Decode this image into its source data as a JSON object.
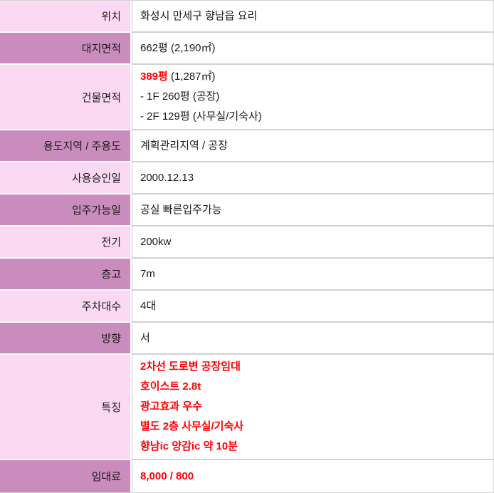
{
  "table": {
    "colors": {
      "label_bg_light": "#fcd9f2",
      "label_bg_dark": "#ca8cbd",
      "value_bg": "#ffffff",
      "row_border": "#d2d2d2",
      "text": "#1a1a1a",
      "highlight_red": "#ff0000"
    },
    "rows": [
      {
        "name": "location",
        "label": "위치",
        "shade": "light",
        "lines": [
          [
            {
              "t": "화성시 만세구 향남읍 요리"
            }
          ]
        ]
      },
      {
        "name": "land-area",
        "label": "대지면적",
        "shade": "dark",
        "lines": [
          [
            {
              "t": "662평 (2,190㎡)"
            }
          ]
        ]
      },
      {
        "name": "building-area",
        "label": "건물면적",
        "shade": "light",
        "lines": [
          [
            {
              "t": "389평",
              "red": true
            },
            {
              "t": " (1,287㎡)"
            }
          ],
          [
            {
              "t": "- 1F 260평 (공장)"
            }
          ],
          [
            {
              "t": "- 2F 129평 (사무실/기숙사)"
            }
          ]
        ]
      },
      {
        "name": "zoning-main-use",
        "label": "용도지역 / 주용도",
        "shade": "dark",
        "lines": [
          [
            {
              "t": "계획관리지역 / 공장"
            }
          ]
        ]
      },
      {
        "name": "approval-date",
        "label": "사용승인일",
        "shade": "light",
        "lines": [
          [
            {
              "t": "2000.12.13"
            }
          ]
        ]
      },
      {
        "name": "move-in-date",
        "label": "입주가능일",
        "shade": "dark",
        "lines": [
          [
            {
              "t": "공실 빠른입주가능"
            }
          ]
        ]
      },
      {
        "name": "electricity",
        "label": "전기",
        "shade": "light",
        "lines": [
          [
            {
              "t": "200kw"
            }
          ]
        ]
      },
      {
        "name": "ceiling-height",
        "label": "층고",
        "shade": "dark",
        "lines": [
          [
            {
              "t": "7m"
            }
          ]
        ]
      },
      {
        "name": "parking-count",
        "label": "주차대수",
        "shade": "light",
        "lines": [
          [
            {
              "t": "4대"
            }
          ]
        ]
      },
      {
        "name": "direction",
        "label": "방향",
        "shade": "dark",
        "lines": [
          [
            {
              "t": "서"
            }
          ]
        ]
      },
      {
        "name": "features",
        "label": "특징",
        "shade": "light",
        "lines": [
          [
            {
              "t": "2차선 도로변 공장임대",
              "red": true
            }
          ],
          [
            {
              "t": "호이스트 2.8t",
              "red": true
            }
          ],
          [
            {
              "t": "광고효과 우수",
              "red": true
            }
          ],
          [
            {
              "t": "별도 2층 사무실/기숙사",
              "red": true
            }
          ],
          [
            {
              "t": "향남ic 양감ic 약 10분",
              "red": true
            }
          ]
        ]
      },
      {
        "name": "rent",
        "label": "임대료",
        "shade": "dark",
        "lines": [
          [
            {
              "t": "8,000 / 800",
              "red": true
            }
          ]
        ]
      }
    ]
  }
}
